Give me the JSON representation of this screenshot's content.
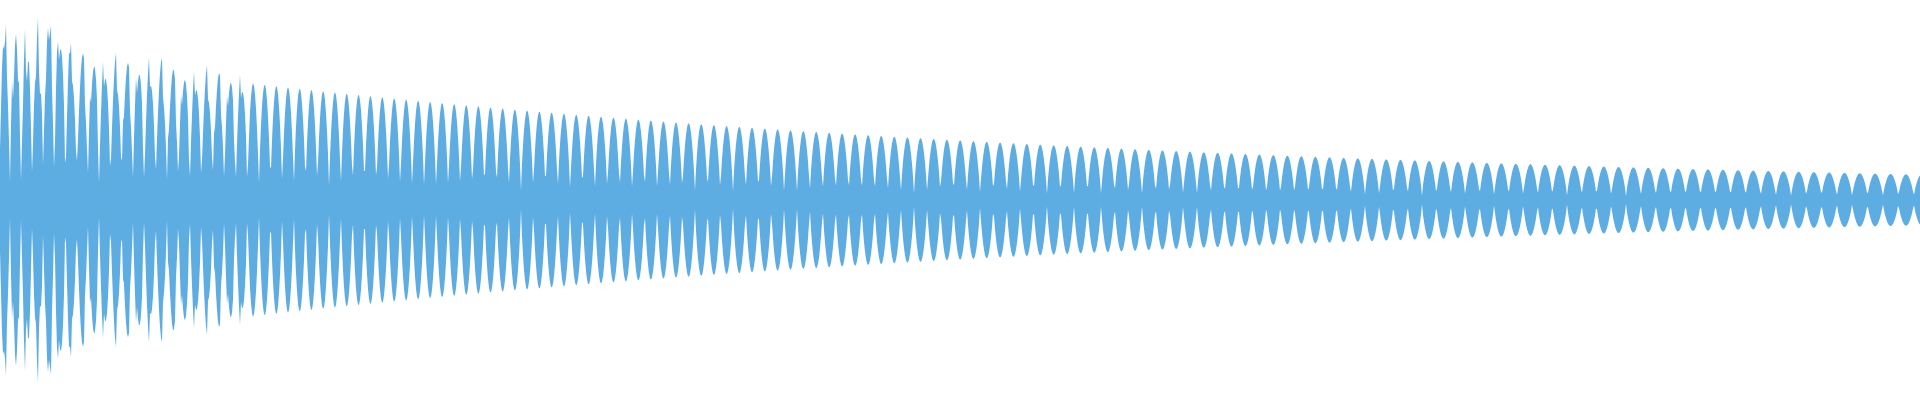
{
  "waveform": {
    "color": "#5dade2",
    "background": "#ffffff",
    "shape": "decaying-oscillation",
    "orientation": "horizontal-centered"
  }
}
